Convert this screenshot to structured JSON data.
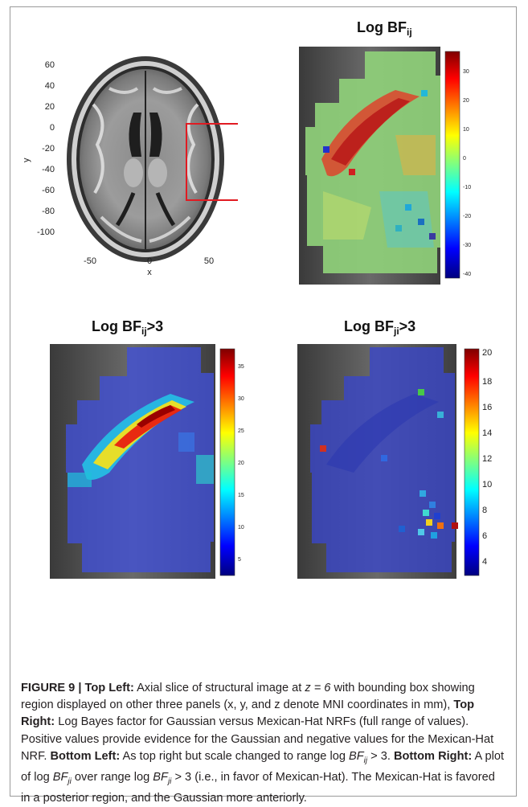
{
  "figure": {
    "titles": {
      "top_right": "Log BF",
      "top_right_sub": "ij",
      "bottom_left": "Log BF",
      "bottom_left_sub": "ij",
      "bottom_left_suffix": ">3",
      "bottom_right": "Log BF",
      "bottom_right_sub": "ji",
      "bottom_right_suffix": ">3"
    },
    "axial_plot": {
      "xlabel": "x",
      "ylabel": "y",
      "xticks": [
        "-50",
        "0",
        "50"
      ],
      "yticks": [
        "60",
        "40",
        "20",
        "0",
        "-20",
        "-40",
        "-60",
        "-80",
        "-100"
      ]
    },
    "colorbars": {
      "top_right": [
        "30",
        "20",
        "10",
        "0",
        "-10",
        "-20",
        "-30",
        "-40"
      ],
      "bottom_left": [
        "35",
        "30",
        "25",
        "20",
        "15",
        "10",
        "5"
      ],
      "bottom_right": [
        "20",
        "18",
        "16",
        "14",
        "12",
        "10",
        "8",
        "6",
        "4"
      ]
    }
  },
  "caption": {
    "label": "FIGURE 9 | Top Left:",
    "t1": " Axial slice of structural image at ",
    "t2": " with bounding box showing region displayed on other three panels (x, y, and z denote MNI coordinates in mm), ",
    "top_right_label": "Top Right:",
    "t3": " Log Bayes factor for Gaussian versus Mexican-Hat NRFs (full range of values). Positive values provide evidence for the Gaussian and negative values for the Mexican-Hat NRF. ",
    "bottom_left_label": "Bottom Left:",
    "t4": " As top right but scale changed to range log ",
    "t5": " > 3. ",
    "bottom_right_label": "Bottom Right:",
    "t6": " A plot of log ",
    "t7": " over range log ",
    "t8": " > 3 (i.e., in favor of Mexican-Hat). The Mexican-Hat is favored in a posterior region, and the Gaussian more anteriorly.",
    "z_eq": "z = 6",
    "bf_ij": "BF",
    "bf_ij_sub": "ij",
    "bf_ji": "BF",
    "bf_ji_sub": "ji"
  }
}
